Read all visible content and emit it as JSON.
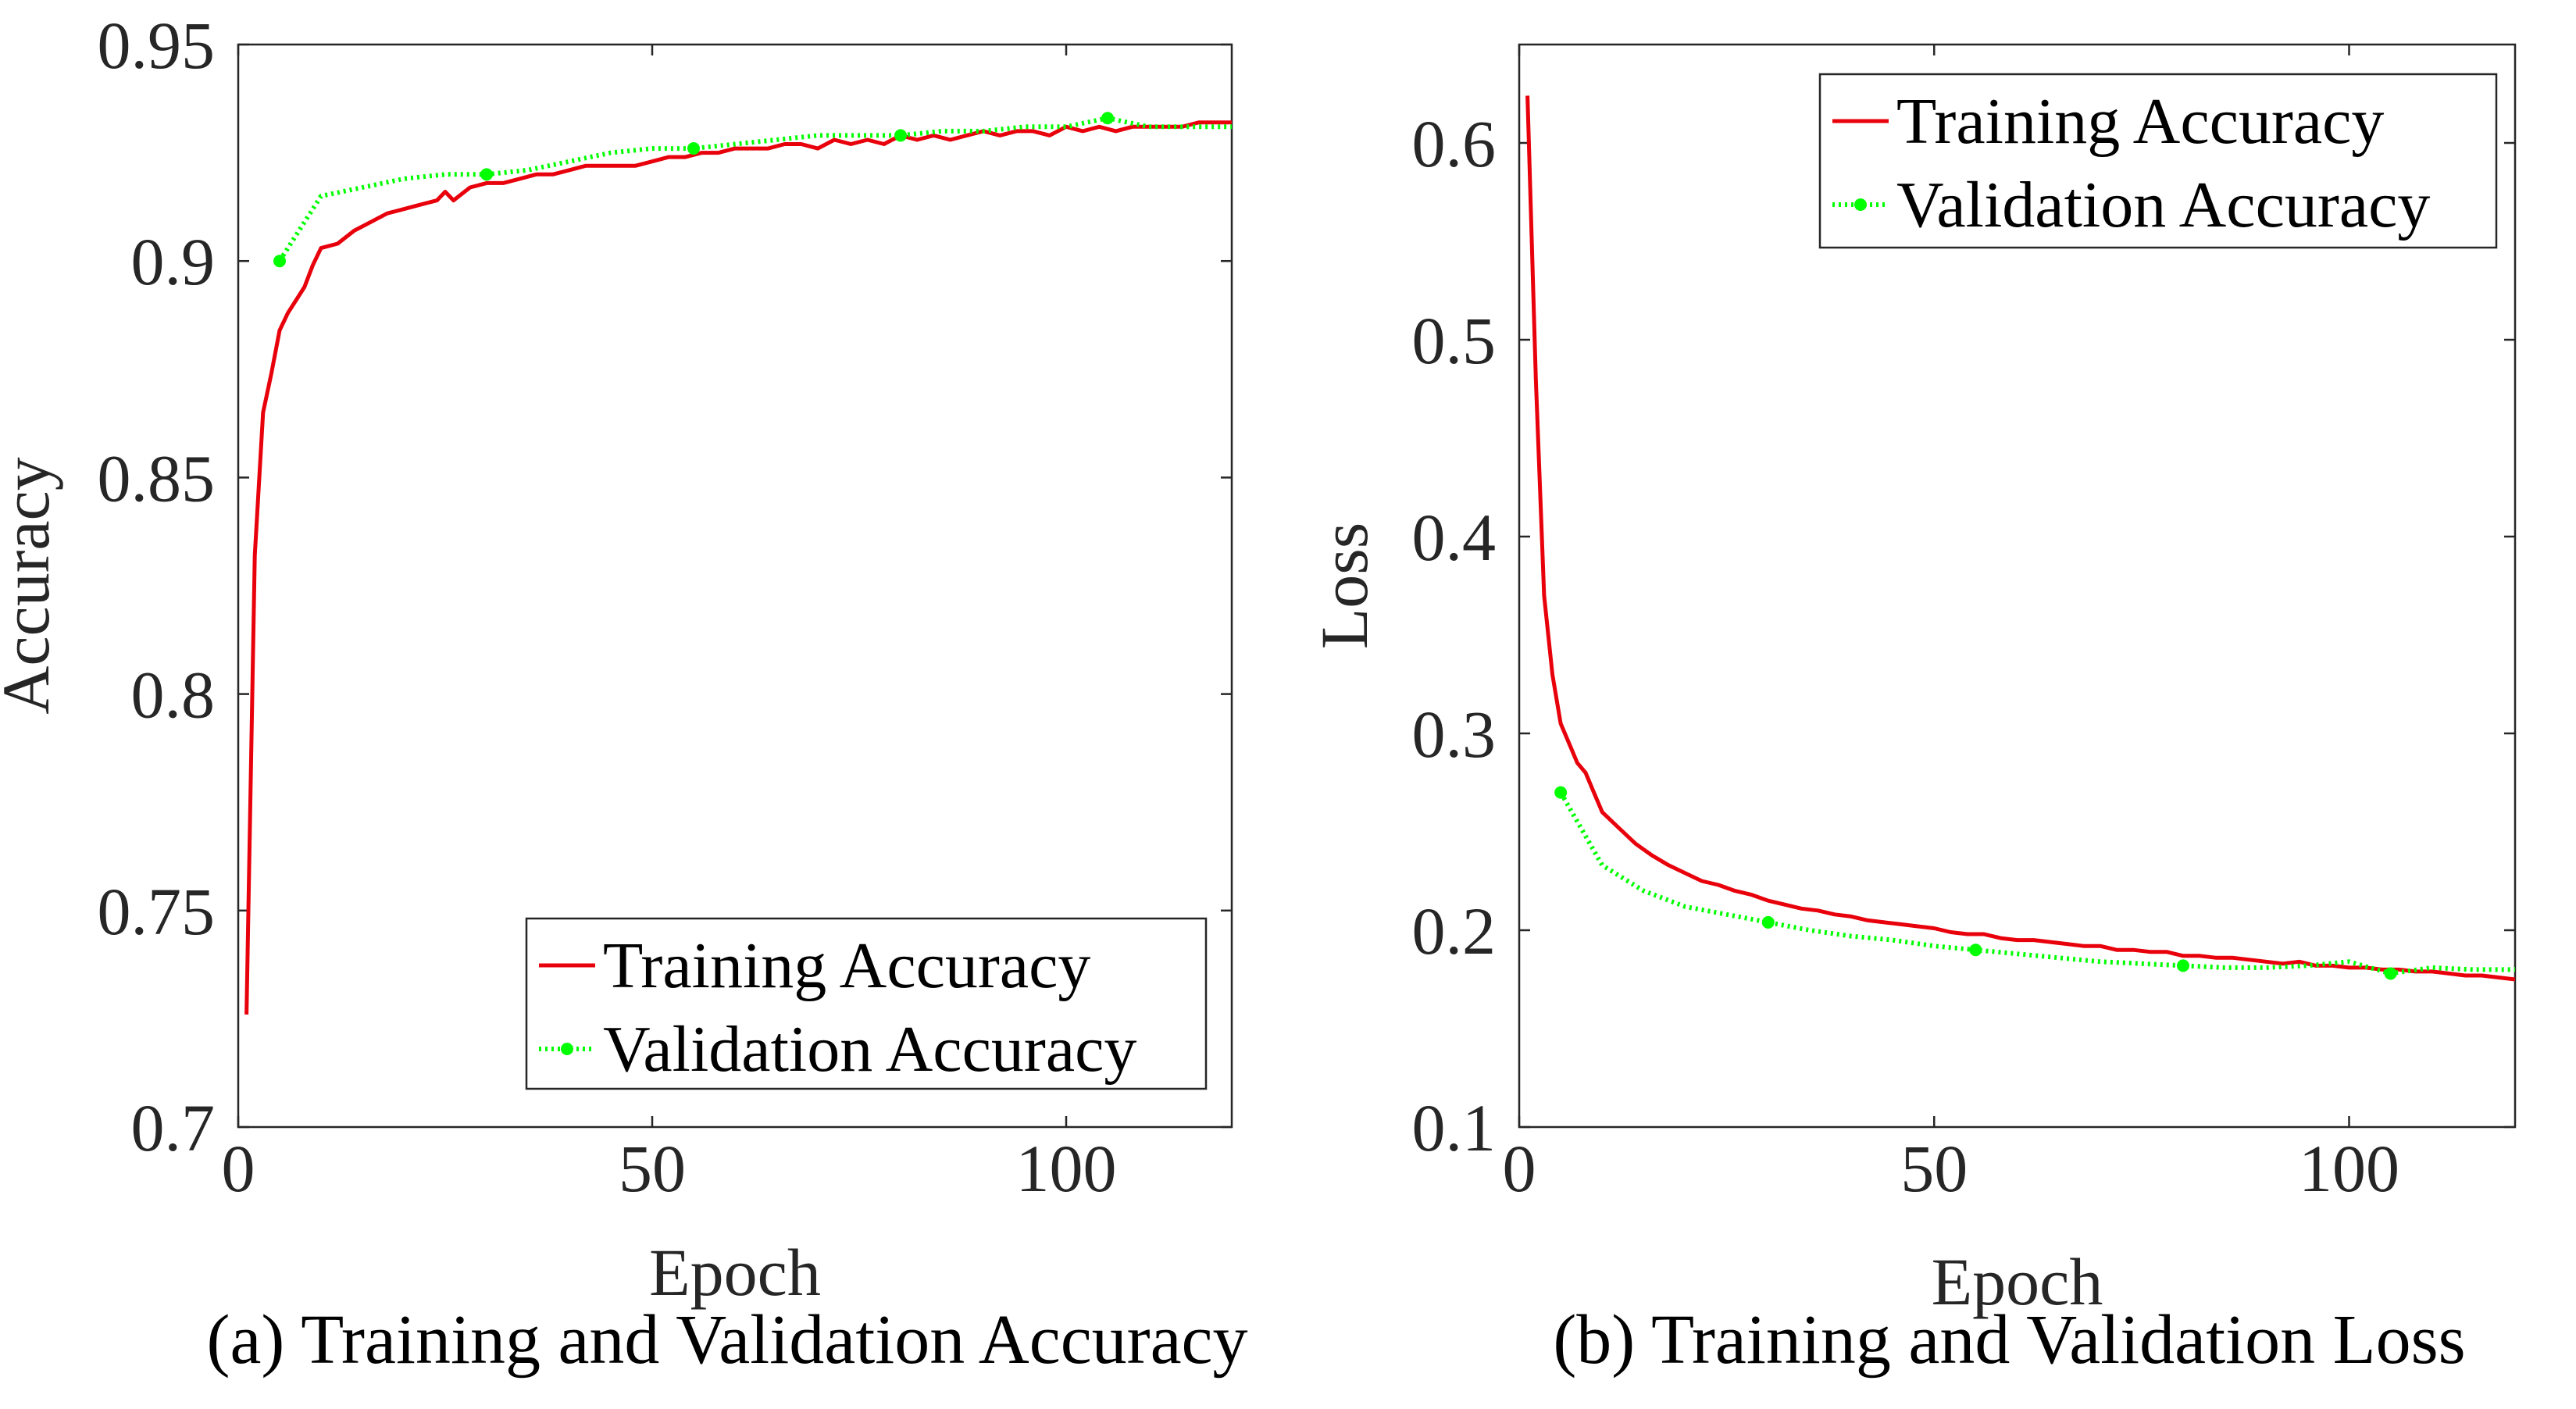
{
  "chart_data": [
    {
      "type": "line",
      "panel": "a",
      "caption": "(a) Training and Validation Accuracy",
      "xlabel": "Epoch",
      "ylabel": "Accuracy",
      "xlim": [
        0,
        120
      ],
      "ylim": [
        0.7,
        0.95
      ],
      "xticks": [
        0,
        50,
        100
      ],
      "xtick_labels": [
        "0",
        "50",
        "100"
      ],
      "yticks": [
        0.7,
        0.75,
        0.8,
        0.85,
        0.9,
        0.95
      ],
      "ytick_labels": [
        "0.7",
        "0.75",
        "0.8",
        "0.85",
        "0.9",
        "0.95"
      ],
      "grid": false,
      "legend_position": "bottom-right",
      "series": [
        {
          "name": "Training Accuracy",
          "color": "#e8000b",
          "style": "solid",
          "x": [
            1,
            2,
            3,
            4,
            5,
            6,
            7,
            8,
            9,
            10,
            12,
            14,
            16,
            18,
            20,
            22,
            24,
            25,
            26,
            28,
            30,
            32,
            34,
            36,
            38,
            40,
            42,
            44,
            46,
            48,
            50,
            52,
            54,
            56,
            58,
            60,
            62,
            64,
            66,
            68,
            70,
            72,
            74,
            76,
            78,
            80,
            82,
            84,
            86,
            88,
            90,
            92,
            94,
            96,
            98,
            100,
            102,
            104,
            106,
            108,
            110,
            112,
            114,
            116,
            118,
            120
          ],
          "values": [
            0.726,
            0.832,
            0.865,
            0.874,
            0.884,
            0.888,
            0.891,
            0.894,
            0.899,
            0.903,
            0.904,
            0.907,
            0.909,
            0.911,
            0.912,
            0.913,
            0.914,
            0.916,
            0.914,
            0.917,
            0.918,
            0.918,
            0.919,
            0.92,
            0.92,
            0.921,
            0.922,
            0.922,
            0.922,
            0.922,
            0.923,
            0.924,
            0.924,
            0.925,
            0.925,
            0.926,
            0.926,
            0.926,
            0.927,
            0.927,
            0.926,
            0.928,
            0.927,
            0.928,
            0.927,
            0.929,
            0.928,
            0.929,
            0.928,
            0.929,
            0.93,
            0.929,
            0.93,
            0.93,
            0.929,
            0.931,
            0.93,
            0.931,
            0.93,
            0.931,
            0.931,
            0.931,
            0.931,
            0.932,
            0.932,
            0.932
          ]
        },
        {
          "name": "Validation Accuracy",
          "color": "#00ff00",
          "style": "dotted",
          "x": [
            5,
            10,
            15,
            20,
            25,
            30,
            35,
            40,
            45,
            50,
            55,
            60,
            65,
            70,
            75,
            80,
            85,
            90,
            95,
            100,
            105,
            110,
            115,
            120
          ],
          "values": [
            0.9,
            0.915,
            0.917,
            0.919,
            0.92,
            0.92,
            0.921,
            0.923,
            0.925,
            0.926,
            0.926,
            0.927,
            0.928,
            0.929,
            0.929,
            0.929,
            0.93,
            0.93,
            0.931,
            0.931,
            0.933,
            0.931,
            0.931,
            0.931
          ],
          "marker_x": [
            5,
            30,
            55,
            80,
            105
          ],
          "marker_values": [
            0.9,
            0.92,
            0.926,
            0.929,
            0.933
          ]
        }
      ]
    },
    {
      "type": "line",
      "panel": "b",
      "caption": "(b) Training and Validation Loss",
      "xlabel": "Epoch",
      "ylabel": "Loss",
      "xlim": [
        0,
        120
      ],
      "ylim": [
        0.1,
        0.65
      ],
      "xticks": [
        0,
        50,
        100
      ],
      "xtick_labels": [
        "0",
        "50",
        "100"
      ],
      "yticks": [
        0.1,
        0.2,
        0.3,
        0.4,
        0.5,
        0.6
      ],
      "ytick_labels": [
        "0.1",
        "0.2",
        "0.3",
        "0.4",
        "0.5",
        "0.6"
      ],
      "grid": false,
      "legend_position": "top-right",
      "series": [
        {
          "name": "Training Accuracy",
          "color": "#e8000b",
          "style": "solid",
          "x": [
            1,
            2,
            3,
            4,
            5,
            6,
            7,
            8,
            9,
            10,
            12,
            14,
            16,
            18,
            20,
            22,
            24,
            26,
            28,
            30,
            32,
            34,
            36,
            38,
            40,
            42,
            44,
            46,
            48,
            50,
            52,
            54,
            56,
            58,
            60,
            62,
            64,
            66,
            68,
            70,
            72,
            74,
            76,
            78,
            80,
            82,
            84,
            86,
            88,
            90,
            92,
            94,
            96,
            98,
            100,
            102,
            104,
            106,
            108,
            110,
            112,
            114,
            116,
            118,
            120
          ],
          "values": [
            0.624,
            0.48,
            0.37,
            0.33,
            0.305,
            0.295,
            0.285,
            0.28,
            0.27,
            0.26,
            0.252,
            0.244,
            0.238,
            0.233,
            0.229,
            0.225,
            0.223,
            0.22,
            0.218,
            0.215,
            0.213,
            0.211,
            0.21,
            0.208,
            0.207,
            0.205,
            0.204,
            0.203,
            0.202,
            0.201,
            0.199,
            0.198,
            0.198,
            0.196,
            0.195,
            0.195,
            0.194,
            0.193,
            0.192,
            0.192,
            0.19,
            0.19,
            0.189,
            0.189,
            0.187,
            0.187,
            0.186,
            0.186,
            0.185,
            0.184,
            0.183,
            0.184,
            0.182,
            0.182,
            0.181,
            0.181,
            0.18,
            0.18,
            0.179,
            0.179,
            0.178,
            0.177,
            0.177,
            0.176,
            0.175
          ]
        },
        {
          "name": "Validation Accuracy",
          "color": "#00ff00",
          "style": "dotted",
          "x": [
            5,
            10,
            15,
            20,
            25,
            30,
            35,
            40,
            45,
            50,
            55,
            60,
            65,
            70,
            75,
            80,
            85,
            90,
            95,
            100,
            105,
            110,
            115,
            120
          ],
          "values": [
            0.27,
            0.233,
            0.22,
            0.212,
            0.208,
            0.204,
            0.2,
            0.197,
            0.195,
            0.192,
            0.19,
            0.188,
            0.186,
            0.184,
            0.183,
            0.182,
            0.181,
            0.181,
            0.182,
            0.184,
            0.178,
            0.181,
            0.18,
            0.18
          ],
          "marker_x": [
            5,
            30,
            55,
            80,
            105
          ],
          "marker_values": [
            0.27,
            0.204,
            0.19,
            0.182,
            0.178
          ]
        }
      ]
    }
  ]
}
